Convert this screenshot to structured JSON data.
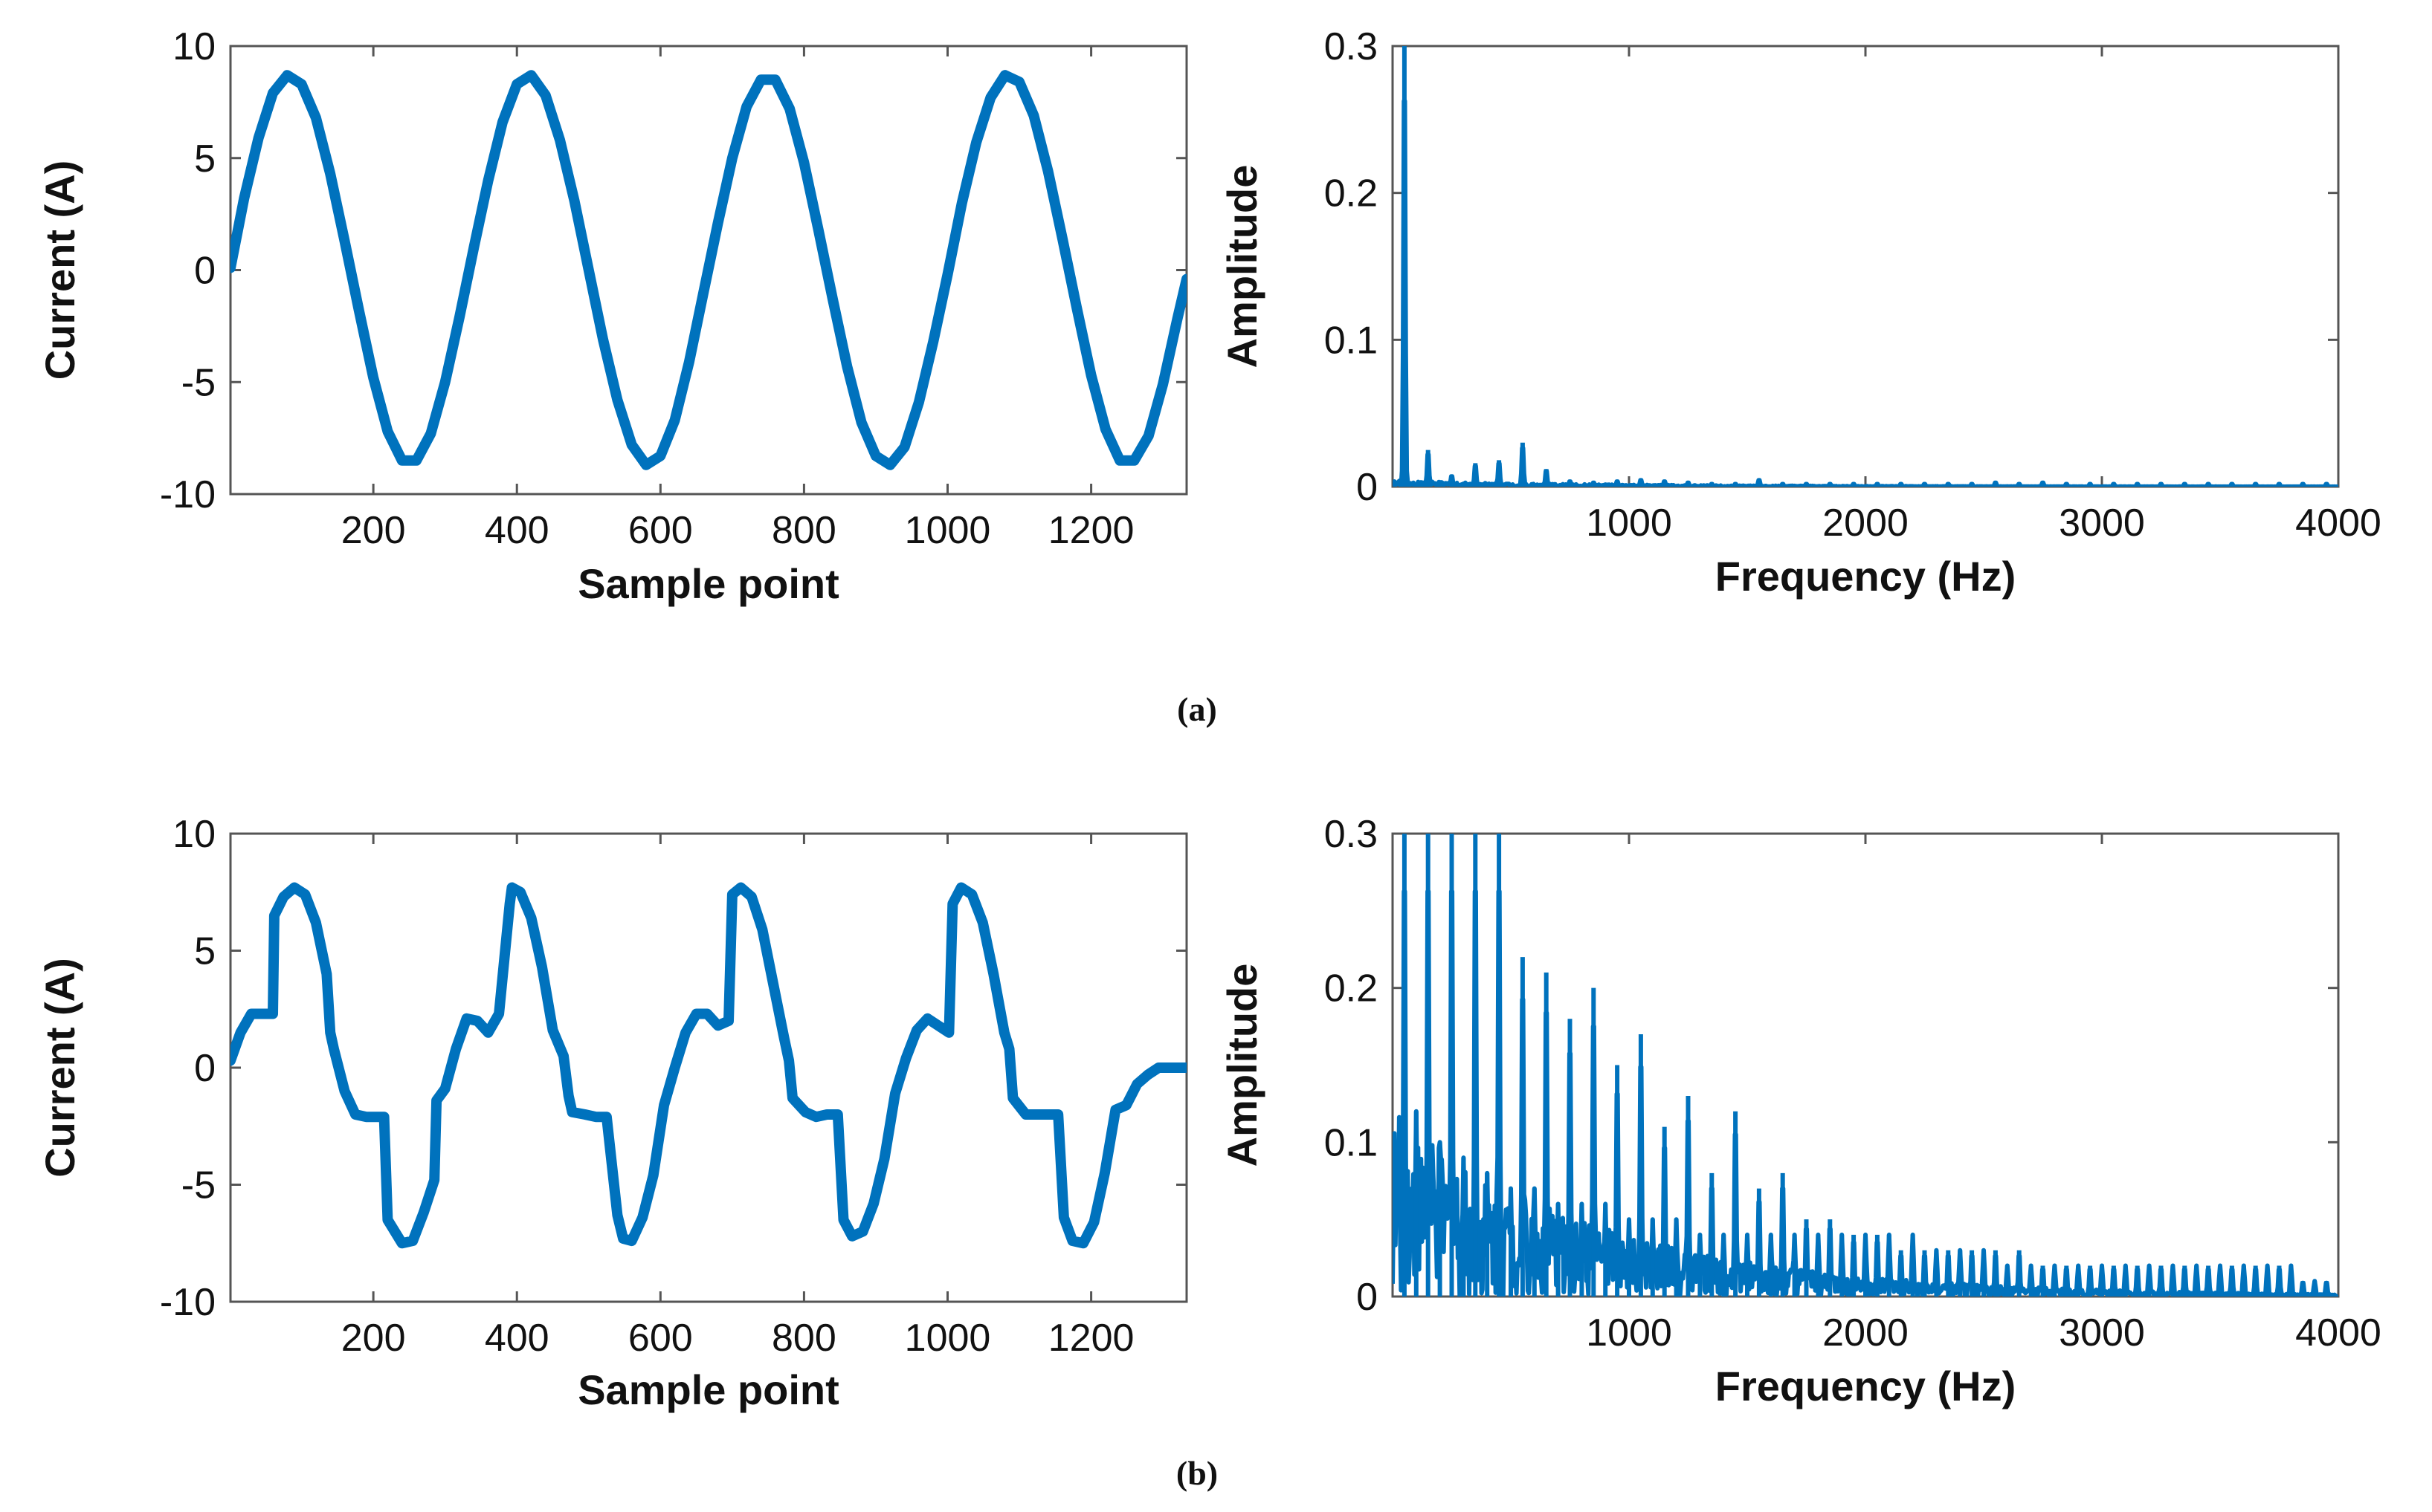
{
  "figure": {
    "captions": [
      "(a)",
      "(b)"
    ]
  },
  "colors": {
    "line": "#0072BD",
    "axis": "#555555"
  },
  "chart_data": [
    {
      "id": "a-time",
      "type": "line",
      "xlabel": "Sample point",
      "ylabel": "Current (A)",
      "xlim": [
        1,
        1333
      ],
      "ylim": [
        -10,
        10
      ],
      "xticks": [
        200,
        400,
        600,
        800,
        1000,
        1200
      ],
      "yticks": [
        -10,
        -5,
        0,
        5,
        10
      ],
      "series": [
        {
          "name": "current",
          "x": [
            1,
            20,
            40,
            60,
            80,
            100,
            120,
            140,
            160,
            180,
            200,
            220,
            240,
            260,
            280,
            300,
            320,
            340,
            360,
            380,
            400,
            420,
            440,
            460,
            480,
            500,
            520,
            540,
            560,
            580,
            600,
            620,
            640,
            660,
            680,
            700,
            720,
            740,
            760,
            780,
            800,
            820,
            840,
            860,
            880,
            900,
            920,
            940,
            960,
            980,
            1000,
            1020,
            1040,
            1060,
            1080,
            1100,
            1120,
            1140,
            1160,
            1180,
            1200,
            1220,
            1240,
            1260,
            1280,
            1300,
            1320,
            1333
          ],
          "y": [
            0.1,
            3.2,
            5.9,
            7.9,
            8.7,
            8.3,
            6.8,
            4.3,
            1.3,
            -1.8,
            -4.8,
            -7.2,
            -8.5,
            -8.5,
            -7.3,
            -5.0,
            -2.1,
            1.0,
            4.0,
            6.6,
            8.3,
            8.7,
            7.8,
            5.8,
            3.1,
            0.0,
            -3.1,
            -5.8,
            -7.8,
            -8.7,
            -8.3,
            -6.7,
            -4.1,
            -1.0,
            2.1,
            5.0,
            7.3,
            8.5,
            8.5,
            7.2,
            4.8,
            1.8,
            -1.3,
            -4.3,
            -6.8,
            -8.3,
            -8.7,
            -7.9,
            -5.9,
            -3.2,
            -0.2,
            3.0,
            5.7,
            7.7,
            8.7,
            8.4,
            6.9,
            4.4,
            1.4,
            -1.7,
            -4.7,
            -7.1,
            -8.5,
            -8.5,
            -7.4,
            -5.1,
            -2.2,
            -0.4
          ]
        }
      ]
    },
    {
      "id": "a-spectrum",
      "type": "line",
      "xlabel": "Frequency (Hz)",
      "ylabel": "Amplitude",
      "xlim": [
        0,
        4000
      ],
      "ylim": [
        0,
        0.3
      ],
      "xticks": [
        1000,
        2000,
        3000,
        4000
      ],
      "yticks": [
        0,
        0.1,
        0.2,
        0.3
      ],
      "peaks": {
        "freq": [
          50,
          150,
          250,
          350,
          450,
          550,
          650,
          750,
          850,
          950,
          1050,
          1150,
          1250,
          1350,
          1450,
          1550,
          1650,
          1750,
          1850,
          1950,
          2050,
          2150,
          2250,
          2350,
          2450,
          2550,
          2650,
          2750,
          2850,
          2950,
          3050,
          3150,
          3250,
          3350,
          3450,
          3550,
          3650,
          3750,
          3850,
          3950
        ],
        "amp": [
          0.3,
          0.025,
          0.008,
          0.016,
          0.018,
          0.03,
          0.012,
          0.004,
          0.003,
          0.004,
          0.005,
          0.004,
          0.003,
          0.002,
          0.002,
          0.005,
          0.002,
          0.002,
          0.002,
          0.002,
          0.002,
          0.002,
          0.002,
          0.002,
          0.002,
          0.003,
          0.002,
          0.003,
          0.002,
          0.002,
          0.002,
          0.002,
          0.002,
          0.002,
          0.002,
          0.002,
          0.002,
          0.002,
          0.002,
          0.002
        ]
      }
    },
    {
      "id": "b-time",
      "type": "line",
      "xlabel": "Sample point",
      "ylabel": "Current (A)",
      "xlim": [
        1,
        1333
      ],
      "ylim": [
        -10,
        10
      ],
      "xticks": [
        200,
        400,
        600,
        800,
        1000,
        1200
      ],
      "yticks": [
        -10,
        -5,
        0,
        5,
        10
      ],
      "series": [
        {
          "name": "current",
          "x": [
            1,
            15,
            30,
            45,
            60,
            62,
            75,
            90,
            105,
            120,
            135,
            140,
            145,
            160,
            175,
            190,
            205,
            215,
            220,
            240,
            255,
            270,
            285,
            288,
            300,
            315,
            330,
            345,
            360,
            375,
            390,
            393,
            405,
            420,
            435,
            450,
            465,
            472,
            477,
            495,
            510,
            525,
            540,
            548,
            560,
            575,
            590,
            605,
            620,
            635,
            650,
            665,
            680,
            695,
            700,
            712,
            727,
            742,
            757,
            772,
            779,
            784,
            802,
            817,
            832,
            847,
            855,
            867,
            882,
            897,
            912,
            927,
            942,
            957,
            972,
            987,
            1002,
            1007,
            1019,
            1034,
            1049,
            1064,
            1079,
            1086,
            1091,
            1109,
            1124,
            1139,
            1154,
            1162,
            1174,
            1189,
            1204,
            1219,
            1234,
            1249,
            1264,
            1279,
            1294,
            1309,
            1314,
            1326,
            1333
          ],
          "y": [
            0.3,
            1.5,
            2.3,
            2.3,
            2.3,
            6.5,
            7.3,
            7.7,
            7.4,
            6.2,
            4.0,
            1.5,
            0.8,
            -1.0,
            -2.0,
            -2.1,
            -2.1,
            -2.1,
            -6.5,
            -7.5,
            -7.4,
            -6.2,
            -4.8,
            -1.4,
            -0.9,
            0.8,
            2.1,
            2.0,
            1.5,
            2.3,
            7.0,
            7.7,
            7.5,
            6.4,
            4.3,
            1.6,
            0.5,
            -1.2,
            -1.9,
            -2.0,
            -2.1,
            -2.1,
            -6.3,
            -7.3,
            -7.4,
            -6.4,
            -4.6,
            -1.6,
            0.0,
            1.5,
            2.3,
            2.3,
            1.8,
            2.0,
            7.4,
            7.7,
            7.3,
            5.9,
            3.6,
            1.3,
            0.3,
            -1.3,
            -1.9,
            -2.1,
            -2.0,
            -2.0,
            -6.5,
            -7.2,
            -7.0,
            -5.8,
            -3.9,
            -1.1,
            0.4,
            1.6,
            2.1,
            1.8,
            1.5,
            7.0,
            7.7,
            7.4,
            6.2,
            4.0,
            1.5,
            0.8,
            -1.3,
            -2.0,
            -2.0,
            -2.0,
            -2.0,
            -6.4,
            -7.4,
            -7.5,
            -6.6,
            -4.5,
            -1.8,
            -1.6,
            -0.7,
            -0.3,
            0.0,
            0.0,
            0.0,
            0.0,
            0.0
          ]
        }
      ]
    },
    {
      "id": "b-spectrum",
      "type": "line",
      "xlabel": "Frequency (Hz)",
      "ylabel": "Amplitude",
      "xlim": [
        0,
        4000
      ],
      "ylim": [
        0,
        0.3
      ],
      "xticks": [
        1000,
        2000,
        3000,
        4000
      ],
      "yticks": [
        0,
        0.1,
        0.2,
        0.3
      ],
      "peaks": {
        "freq": [
          50,
          100,
          150,
          200,
          250,
          300,
          350,
          400,
          450,
          500,
          550,
          600,
          650,
          700,
          750,
          800,
          850,
          900,
          950,
          1000,
          1050,
          1100,
          1150,
          1200,
          1250,
          1300,
          1350,
          1400,
          1450,
          1500,
          1550,
          1600,
          1650,
          1700,
          1750,
          1800,
          1850,
          1900,
          1950,
          2000,
          2050,
          2100,
          2150,
          2200,
          2250,
          2300,
          2350,
          2400,
          2450,
          2500,
          2550,
          2600,
          2650,
          2700,
          2750,
          2800,
          2850,
          2900,
          2950,
          3000,
          3050,
          3100,
          3150,
          3200,
          3250,
          3300,
          3350,
          3400,
          3450,
          3500,
          3550,
          3600,
          3650,
          3700,
          3750,
          3800,
          3850,
          3900,
          3950
        ],
        "amp": [
          0.3,
          0.12,
          0.3,
          0.1,
          0.3,
          0.09,
          0.3,
          0.08,
          0.3,
          0.07,
          0.22,
          0.07,
          0.21,
          0.06,
          0.18,
          0.06,
          0.2,
          0.06,
          0.15,
          0.05,
          0.17,
          0.05,
          0.11,
          0.05,
          0.13,
          0.04,
          0.08,
          0.04,
          0.12,
          0.04,
          0.07,
          0.04,
          0.08,
          0.04,
          0.05,
          0.04,
          0.05,
          0.04,
          0.04,
          0.04,
          0.04,
          0.04,
          0.03,
          0.04,
          0.03,
          0.03,
          0.03,
          0.03,
          0.03,
          0.03,
          0.03,
          0.02,
          0.03,
          0.02,
          0.02,
          0.02,
          0.02,
          0.02,
          0.02,
          0.02,
          0.02,
          0.02,
          0.02,
          0.02,
          0.02,
          0.02,
          0.02,
          0.02,
          0.02,
          0.02,
          0.02,
          0.02,
          0.02,
          0.02,
          0.02,
          0.02,
          0.01,
          0.01,
          0.01
        ]
      },
      "noise_floor": [
        0.0,
        0.12
      ]
    }
  ]
}
